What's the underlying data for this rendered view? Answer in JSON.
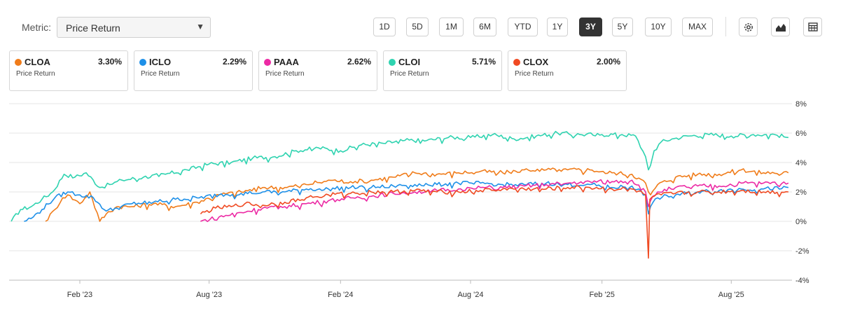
{
  "metric": {
    "label": "Metric:",
    "selected": "Price Return"
  },
  "ranges": [
    "1D",
    "5D",
    "1M",
    "6M",
    "YTD",
    "1Y",
    "3Y",
    "5Y",
    "10Y",
    "MAX"
  ],
  "active_range": "3Y",
  "tools": [
    {
      "name": "settings-icon"
    },
    {
      "name": "chart-type-icon"
    },
    {
      "name": "table-view-icon"
    }
  ],
  "cards": [
    {
      "ticker": "CLOA",
      "value": "3.30%",
      "sub": "Price Return",
      "color": "#f07c1a"
    },
    {
      "ticker": "ICLO",
      "value": "2.29%",
      "sub": "Price Return",
      "color": "#1e90e8"
    },
    {
      "ticker": "PAAA",
      "value": "2.62%",
      "sub": "Price Return",
      "color": "#ec2aa4"
    },
    {
      "ticker": "CLOI",
      "value": "5.71%",
      "sub": "Price Return",
      "color": "#2fd3b0"
    },
    {
      "ticker": "CLOX",
      "value": "2.00%",
      "sub": "Price Return",
      "color": "#f04a22"
    }
  ],
  "chart_data": {
    "type": "line",
    "ylim": [
      -4,
      8
    ],
    "yticks": [
      8,
      6,
      4,
      2,
      0,
      -2,
      -4
    ],
    "ytick_labels": [
      "8%",
      "6%",
      "4%",
      "2%",
      "0%",
      "-2%",
      "-4%"
    ],
    "xlim": [
      "2022-10-25",
      "2025-10-25"
    ],
    "xticks": [
      "2023-02-01",
      "2023-08-01",
      "2024-02-01",
      "2024-08-01",
      "2025-02-01",
      "2025-08-01"
    ],
    "xtick_labels": [
      "Feb '23",
      "Aug '23",
      "Feb '24",
      "Aug '24",
      "Feb '25",
      "Aug '25"
    ],
    "grid": true,
    "series": [
      {
        "name": "CLOI",
        "color": "#2fd3b0",
        "x": [
          "2022-10-28",
          "2022-11-10",
          "2022-11-25",
          "2022-12-10",
          "2022-12-25",
          "2023-01-10",
          "2023-01-25",
          "2023-02-10",
          "2023-03-01",
          "2023-03-15",
          "2023-04-01",
          "2023-05-01",
          "2023-06-01",
          "2023-07-01",
          "2023-08-01",
          "2023-09-01",
          "2023-10-01",
          "2023-11-01",
          "2023-12-01",
          "2024-01-01",
          "2024-02-01",
          "2024-03-01",
          "2024-04-01",
          "2024-05-01",
          "2024-06-01",
          "2024-07-01",
          "2024-08-01",
          "2024-09-01",
          "2024-10-01",
          "2024-11-01",
          "2024-12-01",
          "2025-01-01",
          "2025-02-01",
          "2025-03-01",
          "2025-03-20",
          "2025-04-03",
          "2025-04-07",
          "2025-04-10",
          "2025-04-15",
          "2025-04-25",
          "2025-05-10",
          "2025-06-01",
          "2025-07-01",
          "2025-08-01",
          "2025-09-01",
          "2025-10-01",
          "2025-10-20"
        ],
        "y": [
          0.0,
          0.8,
          1.0,
          1.5,
          2.0,
          3.2,
          3.0,
          3.3,
          2.3,
          2.5,
          2.8,
          3.0,
          3.2,
          3.5,
          3.9,
          4.0,
          4.3,
          4.4,
          4.8,
          5.0,
          4.8,
          5.2,
          5.3,
          5.5,
          5.5,
          5.7,
          5.7,
          5.9,
          5.6,
          5.8,
          6.0,
          5.9,
          5.9,
          5.9,
          5.8,
          4.4,
          3.5,
          3.8,
          4.8,
          5.4,
          5.6,
          5.8,
          5.9,
          5.8,
          5.9,
          5.9,
          5.7
        ]
      },
      {
        "name": "CLOA",
        "color": "#f07c1a",
        "x": [
          "2022-12-15",
          "2022-12-28",
          "2023-01-08",
          "2023-01-15",
          "2023-02-01",
          "2023-02-15",
          "2023-03-01",
          "2023-03-10",
          "2023-03-25",
          "2023-04-15",
          "2023-05-15",
          "2023-06-15",
          "2023-07-15",
          "2023-08-15",
          "2023-09-15",
          "2023-10-15",
          "2023-11-15",
          "2023-12-15",
          "2024-01-15",
          "2024-02-15",
          "2024-03-15",
          "2024-04-15",
          "2024-05-15",
          "2024-06-15",
          "2024-07-15",
          "2024-08-15",
          "2024-09-15",
          "2024-10-15",
          "2024-11-15",
          "2024-12-15",
          "2025-01-15",
          "2025-02-15",
          "2025-03-15",
          "2025-04-03",
          "2025-04-07",
          "2025-04-10",
          "2025-04-20",
          "2025-05-15",
          "2025-06-15",
          "2025-07-15",
          "2025-08-15",
          "2025-09-15",
          "2025-10-20"
        ],
        "y": [
          0.0,
          0.8,
          1.6,
          1.8,
          1.2,
          2.0,
          0.0,
          0.5,
          1.0,
          1.0,
          1.2,
          1.0,
          1.3,
          1.8,
          2.0,
          2.3,
          2.3,
          2.5,
          2.8,
          2.7,
          2.8,
          3.0,
          3.3,
          3.2,
          3.3,
          3.4,
          3.3,
          3.5,
          3.5,
          3.5,
          3.5,
          3.3,
          3.2,
          2.6,
          2.0,
          1.8,
          2.5,
          3.0,
          3.2,
          3.2,
          3.5,
          3.3,
          3.3
        ]
      },
      {
        "name": "ICLO",
        "color": "#1e90e8",
        "x": [
          "2022-11-15",
          "2022-11-28",
          "2022-12-10",
          "2022-12-28",
          "2023-01-15",
          "2023-02-01",
          "2023-02-20",
          "2023-03-10",
          "2023-03-25",
          "2023-04-15",
          "2023-05-15",
          "2023-06-15",
          "2023-07-15",
          "2023-08-15",
          "2023-09-15",
          "2023-10-15",
          "2023-11-15",
          "2023-12-15",
          "2024-01-15",
          "2024-02-15",
          "2024-03-15",
          "2024-04-15",
          "2024-05-15",
          "2024-06-15",
          "2024-07-15",
          "2024-08-15",
          "2024-09-15",
          "2024-10-15",
          "2024-11-15",
          "2024-12-15",
          "2025-01-15",
          "2025-02-15",
          "2025-03-15",
          "2025-04-03",
          "2025-04-07",
          "2025-04-10",
          "2025-04-20",
          "2025-05-15",
          "2025-06-15",
          "2025-07-15",
          "2025-08-15",
          "2025-09-15",
          "2025-10-20"
        ],
        "y": [
          0.0,
          0.3,
          0.8,
          1.6,
          2.0,
          1.8,
          1.6,
          0.7,
          0.9,
          1.2,
          1.3,
          1.5,
          1.6,
          1.8,
          1.9,
          2.0,
          2.0,
          2.2,
          2.2,
          2.3,
          2.3,
          2.4,
          2.5,
          2.5,
          2.6,
          2.6,
          2.5,
          2.5,
          2.6,
          2.5,
          2.5,
          2.3,
          2.4,
          1.8,
          0.5,
          1.0,
          1.6,
          1.8,
          2.0,
          2.1,
          2.2,
          2.2,
          2.3
        ]
      },
      {
        "name": "PAAA",
        "color": "#ec2aa4",
        "x": [
          "2023-07-20",
          "2023-08-15",
          "2023-09-15",
          "2023-10-15",
          "2023-11-15",
          "2023-12-15",
          "2024-01-15",
          "2024-02-15",
          "2024-03-15",
          "2024-04-15",
          "2024-05-15",
          "2024-06-15",
          "2024-07-15",
          "2024-08-15",
          "2024-09-15",
          "2024-10-15",
          "2024-11-15",
          "2024-12-15",
          "2025-01-15",
          "2025-02-15",
          "2025-03-15",
          "2025-04-03",
          "2025-04-07",
          "2025-04-10",
          "2025-04-20",
          "2025-05-15",
          "2025-06-15",
          "2025-07-15",
          "2025-08-15",
          "2025-09-15",
          "2025-10-20"
        ],
        "y": [
          0.0,
          0.3,
          0.6,
          0.9,
          1.0,
          1.2,
          1.4,
          1.6,
          1.7,
          1.9,
          2.0,
          2.1,
          2.2,
          2.3,
          2.3,
          2.4,
          2.5,
          2.6,
          2.7,
          2.7,
          2.8,
          2.0,
          1.0,
          1.4,
          2.0,
          2.3,
          2.4,
          2.4,
          2.6,
          2.6,
          2.6
        ]
      },
      {
        "name": "CLOX",
        "color": "#f04a22",
        "x": [
          "2023-07-20",
          "2023-08-10",
          "2023-09-01",
          "2023-09-20",
          "2023-10-15",
          "2023-11-15",
          "2023-12-15",
          "2024-01-15",
          "2024-02-15",
          "2024-03-15",
          "2024-04-15",
          "2024-05-15",
          "2024-06-15",
          "2024-07-15",
          "2024-08-15",
          "2024-09-15",
          "2024-10-15",
          "2024-11-15",
          "2024-12-15",
          "2025-01-15",
          "2025-02-15",
          "2025-03-15",
          "2025-04-03",
          "2025-04-07",
          "2025-04-09",
          "2025-04-15",
          "2025-04-25",
          "2025-05-15",
          "2025-06-15",
          "2025-07-15",
          "2025-08-15",
          "2025-09-15",
          "2025-10-20"
        ],
        "y": [
          0.5,
          0.9,
          1.0,
          1.2,
          1.1,
          1.3,
          1.6,
          1.8,
          1.9,
          2.0,
          2.0,
          2.1,
          2.0,
          2.0,
          2.1,
          2.2,
          2.2,
          2.2,
          2.3,
          2.3,
          2.2,
          2.2,
          1.8,
          -2.5,
          1.5,
          1.7,
          1.8,
          1.9,
          2.0,
          2.0,
          2.1,
          2.0,
          2.0
        ]
      }
    ]
  }
}
